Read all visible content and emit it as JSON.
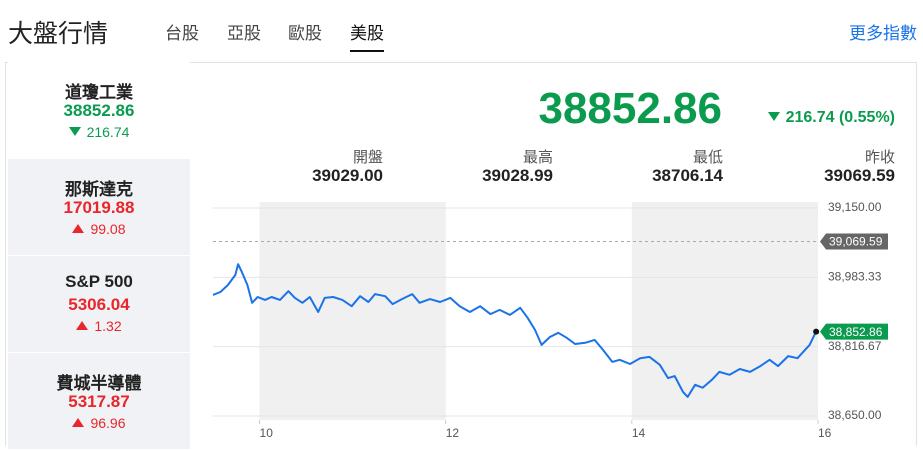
{
  "header": {
    "title": "大盤行情",
    "tabs": [
      "台股",
      "亞股",
      "歐股",
      "美股"
    ],
    "active_tab": 3,
    "more_link": "更多指數"
  },
  "selected_index": 0,
  "indices": [
    {
      "name": "道瓊工業",
      "value": "38852.86",
      "change": "216.74",
      "direction": "down"
    },
    {
      "name": "那斯達克",
      "value": "17019.88",
      "change": "99.08",
      "direction": "up"
    },
    {
      "name": "S&P 500",
      "value": "5306.04",
      "change": "1.32",
      "direction": "up"
    },
    {
      "name": "費城半導體",
      "value": "5317.87",
      "change": "96.96",
      "direction": "up"
    }
  ],
  "summary": {
    "value": "38852.86",
    "change": "216.74 (0.55%)"
  },
  "stats": [
    {
      "label": "開盤",
      "value": "39029.00"
    },
    {
      "label": "最高",
      "value": "39028.99"
    },
    {
      "label": "最低",
      "value": "38706.14"
    },
    {
      "label": "昨收",
      "value": "39069.59"
    }
  ],
  "chart_data": {
    "type": "line",
    "color": "#1a73e8",
    "x": [
      9.5,
      9.58,
      9.66,
      9.74,
      9.77,
      9.81,
      9.87,
      9.92,
      9.98,
      10.06,
      10.13,
      10.22,
      10.31,
      10.38,
      10.46,
      10.54,
      10.63,
      10.7,
      10.79,
      10.89,
      10.99,
      11.08,
      11.17,
      11.24,
      11.35,
      11.43,
      11.53,
      11.64,
      11.72,
      11.83,
      11.94,
      12.05,
      12.15,
      12.26,
      12.37,
      12.48,
      12.58,
      12.69,
      12.8,
      12.88,
      12.96,
      13.03,
      13.12,
      13.21,
      13.3,
      13.39,
      13.5,
      13.6,
      13.69,
      13.79,
      13.87,
      13.98,
      14.09,
      14.19,
      14.3,
      14.39,
      14.46,
      14.55,
      14.6,
      14.68,
      14.76,
      14.86,
      14.94,
      15.05,
      15.16,
      15.27,
      15.38,
      15.48,
      15.57,
      15.68,
      15.78,
      15.86,
      15.91,
      15.98
    ],
    "values": [
      38941,
      38948,
      38965,
      38989,
      39015,
      38996,
      38965,
      38922,
      38936,
      38929,
      38936,
      38929,
      38950,
      38934,
      38922,
      38936,
      38900,
      38934,
      38936,
      38929,
      38914,
      38938,
      38924,
      38943,
      38938,
      38919,
      38931,
      38943,
      38922,
      38931,
      38924,
      38934,
      38914,
      38900,
      38914,
      38895,
      38905,
      38893,
      38910,
      38886,
      38857,
      38821,
      38840,
      38850,
      38838,
      38823,
      38826,
      38833,
      38809,
      38780,
      38785,
      38775,
      38789,
      38792,
      38773,
      38741,
      38746,
      38708,
      38696,
      38725,
      38718,
      38737,
      38756,
      38749,
      38763,
      38756,
      38770,
      38785,
      38770,
      38794,
      38789,
      38809,
      38821,
      38852.86
    ],
    "end_label": "38,852.86",
    "reference_line": {
      "value": 39069.59,
      "label": "39,069.59"
    },
    "xlim": [
      9.5,
      16
    ],
    "xticks": [
      10,
      12,
      14,
      16
    ],
    "ylim": [
      38650,
      39150
    ],
    "yticks": [
      {
        "value": 38650,
        "label": "38,650.00"
      },
      {
        "value": 38816.67,
        "label": "38,816.67"
      },
      {
        "value": 38983.33,
        "label": "38,983.33"
      },
      {
        "value": 39150,
        "label": "39,150.00"
      }
    ],
    "grid": true
  }
}
